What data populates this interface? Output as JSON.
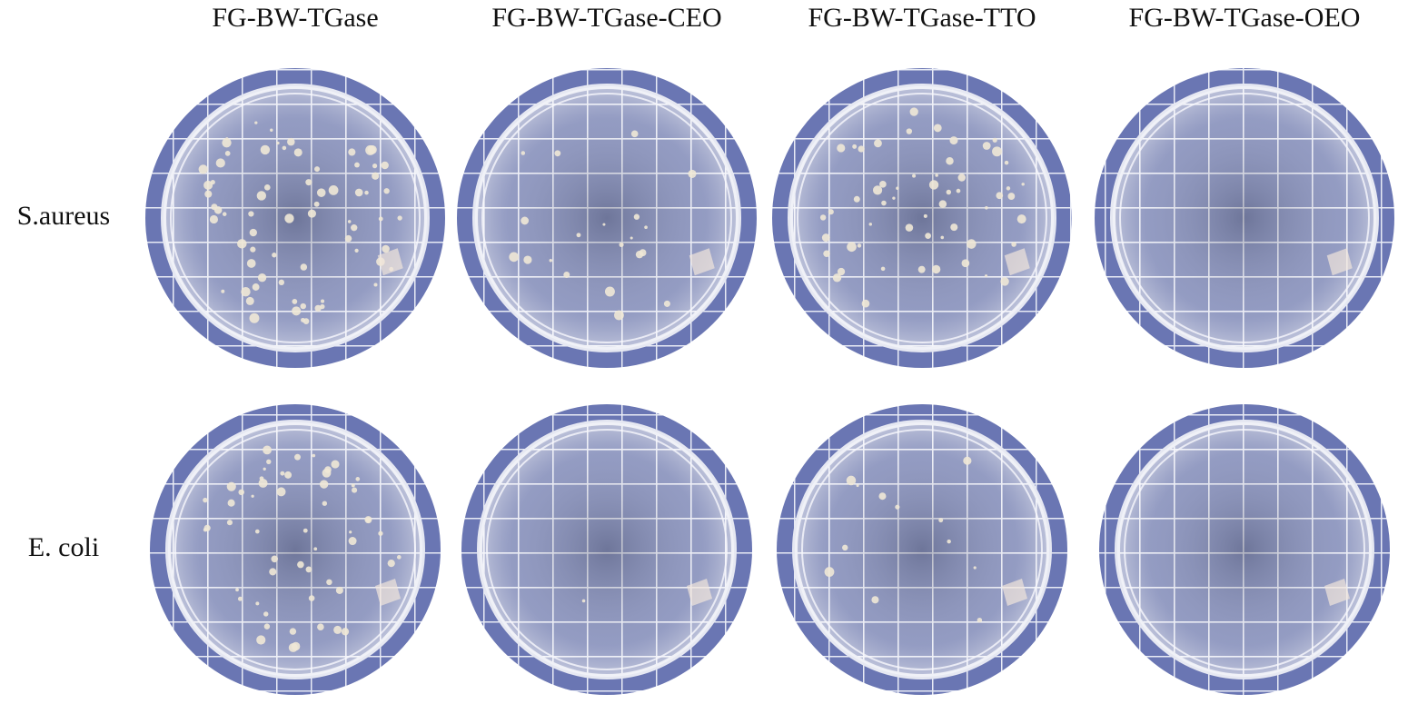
{
  "columns": [
    "FG-BW-TGase",
    "FG-BW-TGase-CEO",
    "FG-BW-TGase-TTO",
    "FG-BW-TGase-OEO"
  ],
  "rows": [
    "S.aureus",
    "E. coli"
  ]
}
